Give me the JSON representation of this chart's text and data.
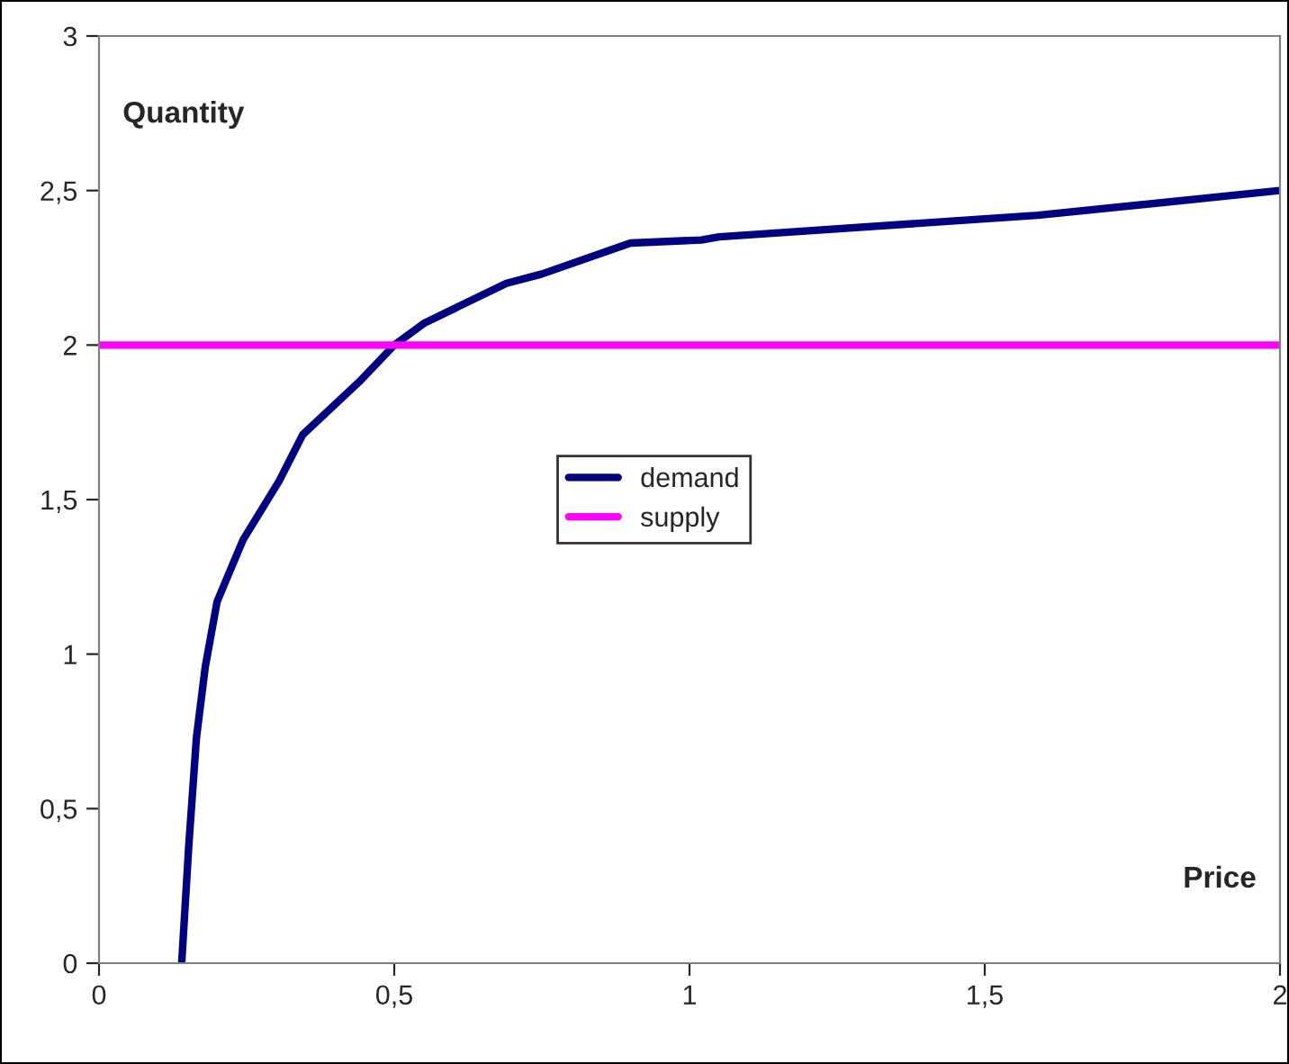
{
  "chart_data": {
    "type": "line",
    "xlabel": "Price",
    "ylabel": "Quantity",
    "series": [
      {
        "name": "demand",
        "color": "#000080",
        "x": [
          0.14,
          0.152,
          0.165,
          0.18,
          0.2,
          0.244,
          0.305,
          0.345,
          0.44,
          0.5,
          0.55,
          0.69,
          0.75,
          0.9,
          1.02,
          1.05,
          1.59,
          2.0
        ],
        "values": [
          0,
          0.38,
          0.73,
          0.96,
          1.17,
          1.37,
          1.56,
          1.71,
          1.88,
          2.0,
          2.07,
          2.2,
          2.23,
          2.33,
          2.34,
          2.35,
          2.42,
          2.5
        ]
      },
      {
        "name": "supply",
        "color": "#ff00ff",
        "x": [
          0,
          2
        ],
        "values": [
          2,
          2
        ]
      }
    ],
    "xlim": [
      0,
      2
    ],
    "ylim": [
      0,
      3
    ],
    "xticks": [
      0,
      {
        "value": 0.5,
        "label": "0,5"
      },
      1,
      {
        "value": 1.5,
        "label": "1,5"
      },
      2
    ],
    "yticks": [
      0,
      {
        "value": 0.5,
        "label": "0,5"
      },
      1,
      {
        "value": 1.5,
        "label": "1,5"
      },
      2,
      {
        "value": 2.5,
        "label": "2,5"
      },
      3
    ],
    "grid": false,
    "legend": "center",
    "marker": "none",
    "line_style": "solid"
  }
}
